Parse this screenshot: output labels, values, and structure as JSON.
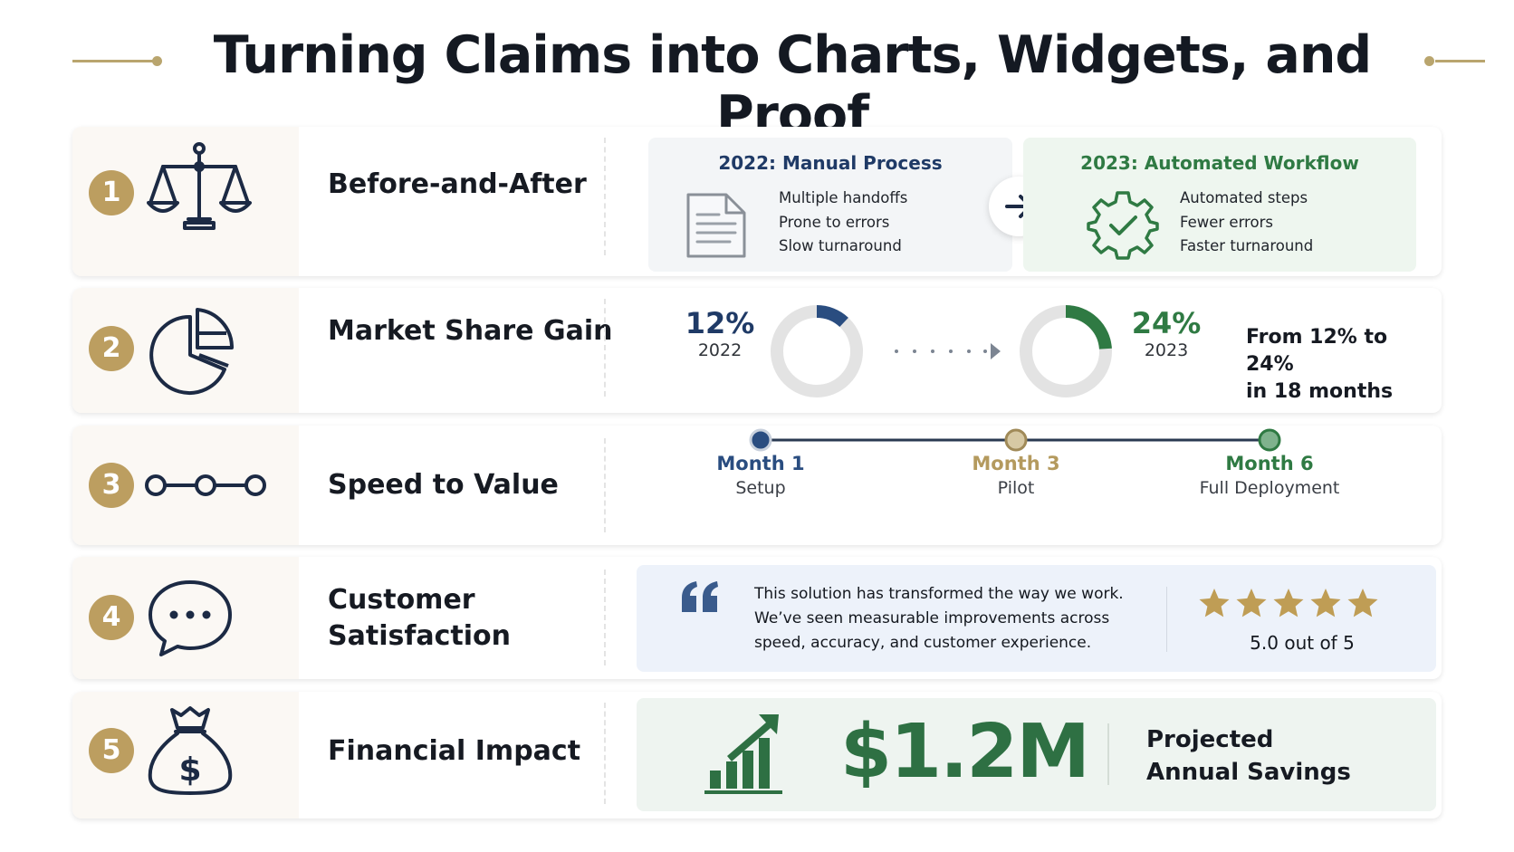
{
  "title": "Turning Claims into Charts, Widgets, and Proof",
  "colors": {
    "gold": "#bc9e60",
    "navy": "#1f3a66",
    "green": "#2f7a43"
  },
  "rows": [
    {
      "number": "1",
      "label": "Before-and-After",
      "icon": "scales-icon",
      "before": {
        "title": "2022: Manual Process",
        "lines": [
          "Multiple handoffs",
          "Prone to errors",
          "Slow turnaround"
        ]
      },
      "after": {
        "title": "2023: Automated Workflow",
        "lines": [
          "Automated steps",
          "Fewer errors",
          "Faster turnaround"
        ]
      }
    },
    {
      "number": "2",
      "label": "Market Share Gain",
      "icon": "pie-chart-icon",
      "start": {
        "value": "12%",
        "year": "2022",
        "share": 0.12
      },
      "end": {
        "value": "24%",
        "year": "2023",
        "share": 0.24
      },
      "summary_line1": "From 12% to 24%",
      "summary_line2": "in 18 months"
    },
    {
      "number": "3",
      "label": "Speed to Value",
      "icon": "timeline-icon",
      "milestones": [
        {
          "title": "Month 1",
          "sub": "Setup",
          "color": "#2a4d80"
        },
        {
          "title": "Month 3",
          "sub": "Pilot",
          "color": "#b9a56e"
        },
        {
          "title": "Month 6",
          "sub": "Full Deployment",
          "color": "#2f7a43"
        }
      ]
    },
    {
      "number": "4",
      "label_line1": "Customer",
      "label_line2": "Satisfaction",
      "icon": "chat-bubble-icon",
      "quote_lines": [
        "This solution has transformed the way we work.",
        "We’ve seen measurable improvements across",
        "speed, accuracy, and customer experience."
      ],
      "stars": 5,
      "rating_text": "5.0 out of 5"
    },
    {
      "number": "5",
      "label": "Financial Impact",
      "icon": "money-bag-icon",
      "amount": "$1.2M",
      "caption_line1": "Projected",
      "caption_line2": "Annual Savings"
    }
  ]
}
